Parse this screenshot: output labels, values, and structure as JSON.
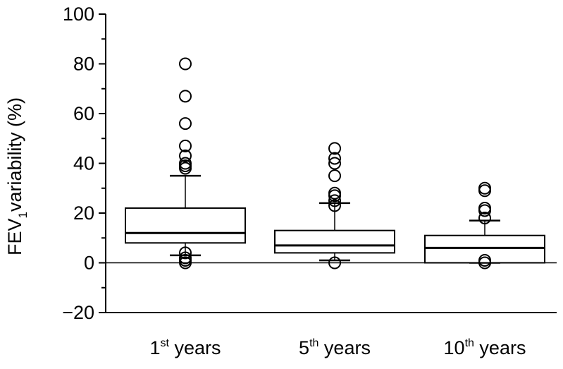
{
  "chart_data": {
    "type": "box",
    "ylabel": {
      "prefix": "FEV",
      "subscript": "1",
      "suffix": "variability (%)"
    },
    "ylim": [
      -20,
      100
    ],
    "yticks": [
      -20,
      0,
      20,
      40,
      60,
      80,
      100
    ],
    "ytick_labels": [
      "−20",
      "0",
      "20",
      "40",
      "60",
      "80",
      "100"
    ],
    "reference_line": 0,
    "categories": [
      {
        "num": "1",
        "sup": "st",
        "rest": " years"
      },
      {
        "num": "5",
        "sup": "th",
        "rest": " years"
      },
      {
        "num": "10",
        "sup": "th",
        "rest": " years"
      }
    ],
    "boxes": [
      {
        "whisker_low": 3,
        "q1": 8,
        "median": 12,
        "q3": 22,
        "whisker_high": 35,
        "outliers": [
          0,
          1,
          2,
          4,
          38,
          39,
          40,
          43,
          47,
          56,
          67,
          80
        ]
      },
      {
        "whisker_low": 1,
        "q1": 4,
        "median": 7,
        "q3": 13,
        "whisker_high": 24,
        "outliers": [
          0,
          23,
          25,
          27,
          28,
          35,
          40,
          42,
          46
        ]
      },
      {
        "whisker_low": 0,
        "q1": 0,
        "median": 6,
        "q3": 11,
        "whisker_high": 17,
        "outliers": [
          0,
          1,
          18,
          21,
          22,
          29,
          30
        ]
      }
    ]
  }
}
